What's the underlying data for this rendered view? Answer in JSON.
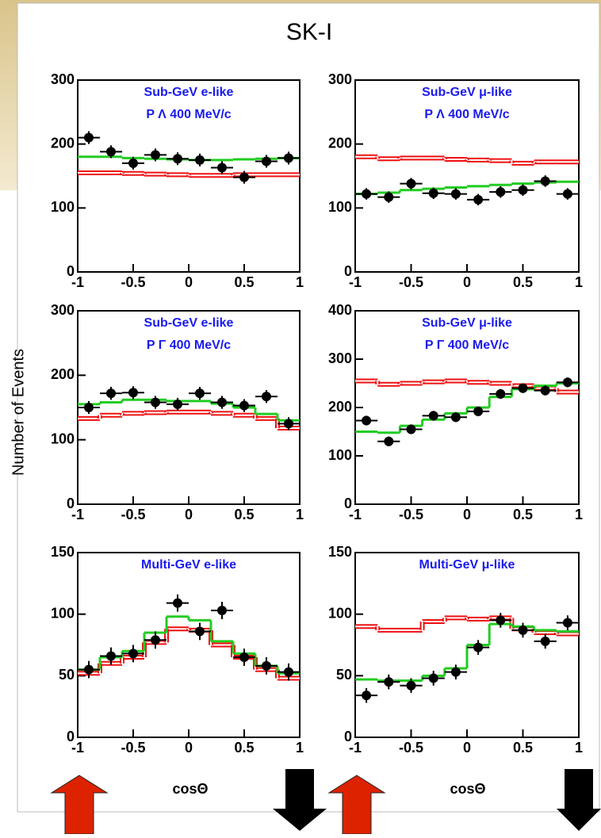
{
  "title": "SK-I",
  "y_label": "Number of Events",
  "x_label": "cosΘ",
  "chart_data": [
    {
      "type": "histogram",
      "title": "Sub-GeV e-like",
      "subtitle": "P Λ 400 MeV/c",
      "bins": [
        -1,
        -0.8,
        -0.6,
        -0.4,
        -0.2,
        0,
        0.2,
        0.4,
        0.6,
        0.8,
        1
      ],
      "xlim": [
        -1,
        1
      ],
      "xticks": [
        -1,
        -0.5,
        0,
        0.5,
        1
      ],
      "ylim": [
        0,
        300
      ],
      "yticks": [
        0,
        100,
        200,
        300
      ],
      "series": [
        {
          "color": "#ee1111",
          "values": [
            155,
            155,
            154,
            153,
            152,
            151,
            151,
            152,
            152,
            152
          ]
        },
        {
          "color": "#22cc22",
          "values": [
            180,
            180,
            178,
            177,
            176,
            175,
            175,
            176,
            177,
            178
          ]
        },
        {
          "color": "#000000",
          "values": [
            210,
            188,
            170,
            183,
            177,
            175,
            163,
            148,
            173,
            178
          ],
          "errors": [
            10,
            10,
            10,
            10,
            10,
            10,
            10,
            10,
            10,
            10
          ]
        }
      ]
    },
    {
      "type": "histogram",
      "title": "Sub-GeV μ-like",
      "subtitle": "P Λ 400 MeV/c",
      "bins": [
        -1,
        -0.8,
        -0.6,
        -0.4,
        -0.2,
        0,
        0.2,
        0.4,
        0.6,
        0.8,
        1
      ],
      "xlim": [
        -1,
        1
      ],
      "xticks": [
        -1,
        -0.5,
        0,
        0.5,
        1
      ],
      "ylim": [
        0,
        300
      ],
      "yticks": [
        0,
        100,
        200,
        300
      ],
      "series": [
        {
          "color": "#ee1111",
          "values": [
            180,
            177,
            178,
            178,
            176,
            175,
            174,
            170,
            172,
            172
          ]
        },
        {
          "color": "#22cc22",
          "values": [
            122,
            124,
            128,
            130,
            132,
            134,
            136,
            138,
            140,
            141
          ]
        },
        {
          "color": "#000000",
          "values": [
            122,
            117,
            138,
            123,
            122,
            113,
            125,
            128,
            142,
            122
          ],
          "errors": [
            9,
            9,
            9,
            9,
            9,
            9,
            9,
            9,
            9,
            9
          ]
        }
      ]
    },
    {
      "type": "histogram",
      "title": "Sub-GeV e-like",
      "subtitle": "P Γ 400 MeV/c",
      "bins": [
        -1,
        -0.8,
        -0.6,
        -0.4,
        -0.2,
        0,
        0.2,
        0.4,
        0.6,
        0.8,
        1
      ],
      "xlim": [
        -1,
        1
      ],
      "xticks": [
        -1,
        -0.5,
        0,
        0.5,
        1
      ],
      "ylim": [
        0,
        300
      ],
      "yticks": [
        0,
        100,
        200,
        300
      ],
      "series": [
        {
          "color": "#ee1111",
          "values": [
            133,
            138,
            141,
            142,
            143,
            143,
            141,
            138,
            133,
            118
          ]
        },
        {
          "color": "#22cc22",
          "values": [
            155,
            158,
            162,
            162,
            160,
            160,
            156,
            150,
            140,
            130
          ]
        },
        {
          "color": "#000000",
          "values": [
            150,
            172,
            173,
            158,
            155,
            172,
            158,
            153,
            167,
            125
          ],
          "errors": [
            10,
            10,
            10,
            10,
            10,
            10,
            10,
            10,
            10,
            10
          ]
        }
      ]
    },
    {
      "type": "histogram",
      "title": "Sub-GeV μ-like",
      "subtitle": "P Γ 400 MeV/c",
      "bins": [
        -1,
        -0.8,
        -0.6,
        -0.4,
        -0.2,
        0,
        0.2,
        0.4,
        0.6,
        0.8,
        1
      ],
      "xlim": [
        -1,
        1
      ],
      "xticks": [
        -1,
        -0.5,
        0,
        0.5,
        1
      ],
      "ylim": [
        0,
        400
      ],
      "yticks": [
        0,
        100,
        200,
        300,
        400
      ],
      "series": [
        {
          "color": "#ee1111",
          "values": [
            255,
            248,
            250,
            253,
            255,
            252,
            250,
            245,
            240,
            232
          ]
        },
        {
          "color": "#22cc22",
          "values": [
            150,
            148,
            162,
            175,
            188,
            200,
            222,
            238,
            245,
            250
          ]
        },
        {
          "color": "#000000",
          "values": [
            173,
            130,
            155,
            183,
            180,
            192,
            228,
            240,
            235,
            252
          ],
          "errors": [
            10,
            10,
            10,
            10,
            10,
            10,
            10,
            10,
            10,
            10
          ]
        }
      ]
    },
    {
      "type": "histogram",
      "title": "Multi-GeV e-like",
      "bins": [
        -1,
        -0.8,
        -0.6,
        -0.4,
        -0.2,
        0,
        0.2,
        0.4,
        0.6,
        0.8,
        1
      ],
      "xlim": [
        -1,
        1
      ],
      "xticks": [
        -1,
        -0.5,
        0,
        0.5,
        1
      ],
      "ylim": [
        0,
        150
      ],
      "yticks": [
        0,
        50,
        100,
        150
      ],
      "series": [
        {
          "color": "#ee1111",
          "values": [
            52,
            60,
            65,
            77,
            88,
            87,
            75,
            65,
            55,
            48
          ]
        },
        {
          "color": "#22cc22",
          "values": [
            55,
            65,
            70,
            85,
            98,
            95,
            78,
            68,
            58,
            52
          ]
        },
        {
          "color": "#000000",
          "values": [
            55,
            66,
            68,
            79,
            109,
            86,
            103,
            65,
            58,
            53
          ],
          "errors": [
            7,
            7,
            7,
            7,
            7,
            7,
            7,
            7,
            7,
            7
          ]
        }
      ]
    },
    {
      "type": "histogram",
      "title": "Multi-GeV μ-like",
      "bins": [
        -1,
        -0.8,
        -0.6,
        -0.4,
        -0.2,
        0,
        0.2,
        0.4,
        0.6,
        0.8,
        1
      ],
      "xlim": [
        -1,
        1
      ],
      "xticks": [
        -1,
        -0.5,
        0,
        0.5,
        1
      ],
      "ylim": [
        0,
        150
      ],
      "yticks": [
        0,
        50,
        100,
        150
      ],
      "series": [
        {
          "color": "#ee1111",
          "values": [
            90,
            87,
            87,
            94,
            97,
            96,
            97,
            88,
            85,
            84
          ]
        },
        {
          "color": "#22cc22",
          "values": [
            47,
            46,
            46,
            50,
            56,
            75,
            92,
            90,
            87,
            86
          ]
        },
        {
          "color": "#000000",
          "values": [
            34,
            45,
            42,
            48,
            53,
            73,
            95,
            87,
            78,
            93
          ],
          "errors": [
            6,
            6,
            6,
            6,
            6,
            6,
            6,
            6,
            6,
            6
          ]
        }
      ]
    }
  ]
}
